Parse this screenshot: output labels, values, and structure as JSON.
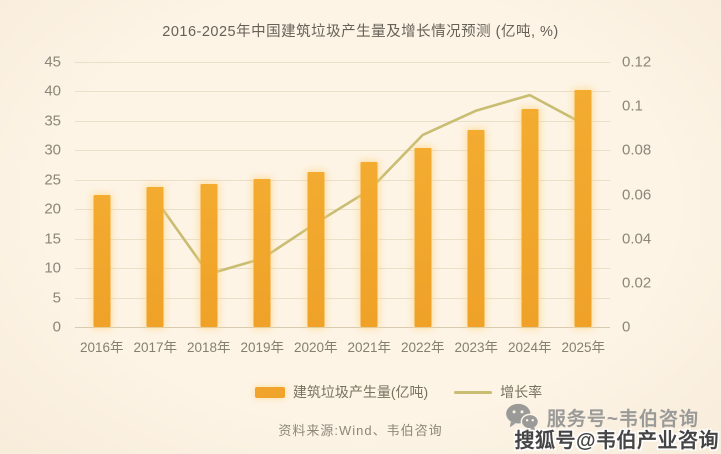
{
  "title": "2016-2025年中国建筑垃圾产生量及增长情况预测 (亿吨, %)",
  "chart_data": {
    "type": "bar+line",
    "categories": [
      "2016年",
      "2017年",
      "2018年",
      "2019年",
      "2020年",
      "2021年",
      "2022年",
      "2023年",
      "2024年",
      "2025年"
    ],
    "series": [
      {
        "name": "建筑垃圾产生量(亿吨)",
        "type": "bar",
        "axis": "left",
        "values": [
          22.4,
          23.8,
          24.3,
          25.1,
          26.4,
          28.0,
          30.4,
          33.4,
          37.0,
          40.2
        ]
      },
      {
        "name": "增长率",
        "type": "line",
        "axis": "right",
        "values": [
          null,
          0.058,
          0.024,
          0.031,
          0.047,
          0.062,
          0.087,
          0.098,
          0.105,
          0.092
        ]
      }
    ],
    "left_axis": {
      "min": 0,
      "max": 45,
      "ticks": [
        "0",
        "5",
        "10",
        "15",
        "20",
        "25",
        "30",
        "35",
        "40",
        "45"
      ]
    },
    "right_axis": {
      "min": 0,
      "max": 0.12,
      "ticks": [
        "0",
        "0.02",
        "0.04",
        "0.06",
        "0.08",
        "0.1",
        "0.12"
      ]
    },
    "grid": true,
    "legend_position": "bottom"
  },
  "legend": {
    "bar_label": "建筑垃圾产生量(亿吨)",
    "line_label": "增长率"
  },
  "source": "资料来源:Wind、韦伯咨询",
  "watermarks": {
    "service_account": "服务号~韦伯咨询",
    "sohu": "搜狐号@韦伯产业咨询"
  },
  "colors": {
    "background": "#fdf3e4",
    "bar": "#f0a42c",
    "bar_glow": "#ffd278",
    "line": "#c9bd72",
    "grid": "#eadfc9",
    "axis_text": "#8b8678",
    "title_text": "#666156",
    "watermark_gray": "#9a9a98",
    "watermark_dark": "#454545"
  }
}
